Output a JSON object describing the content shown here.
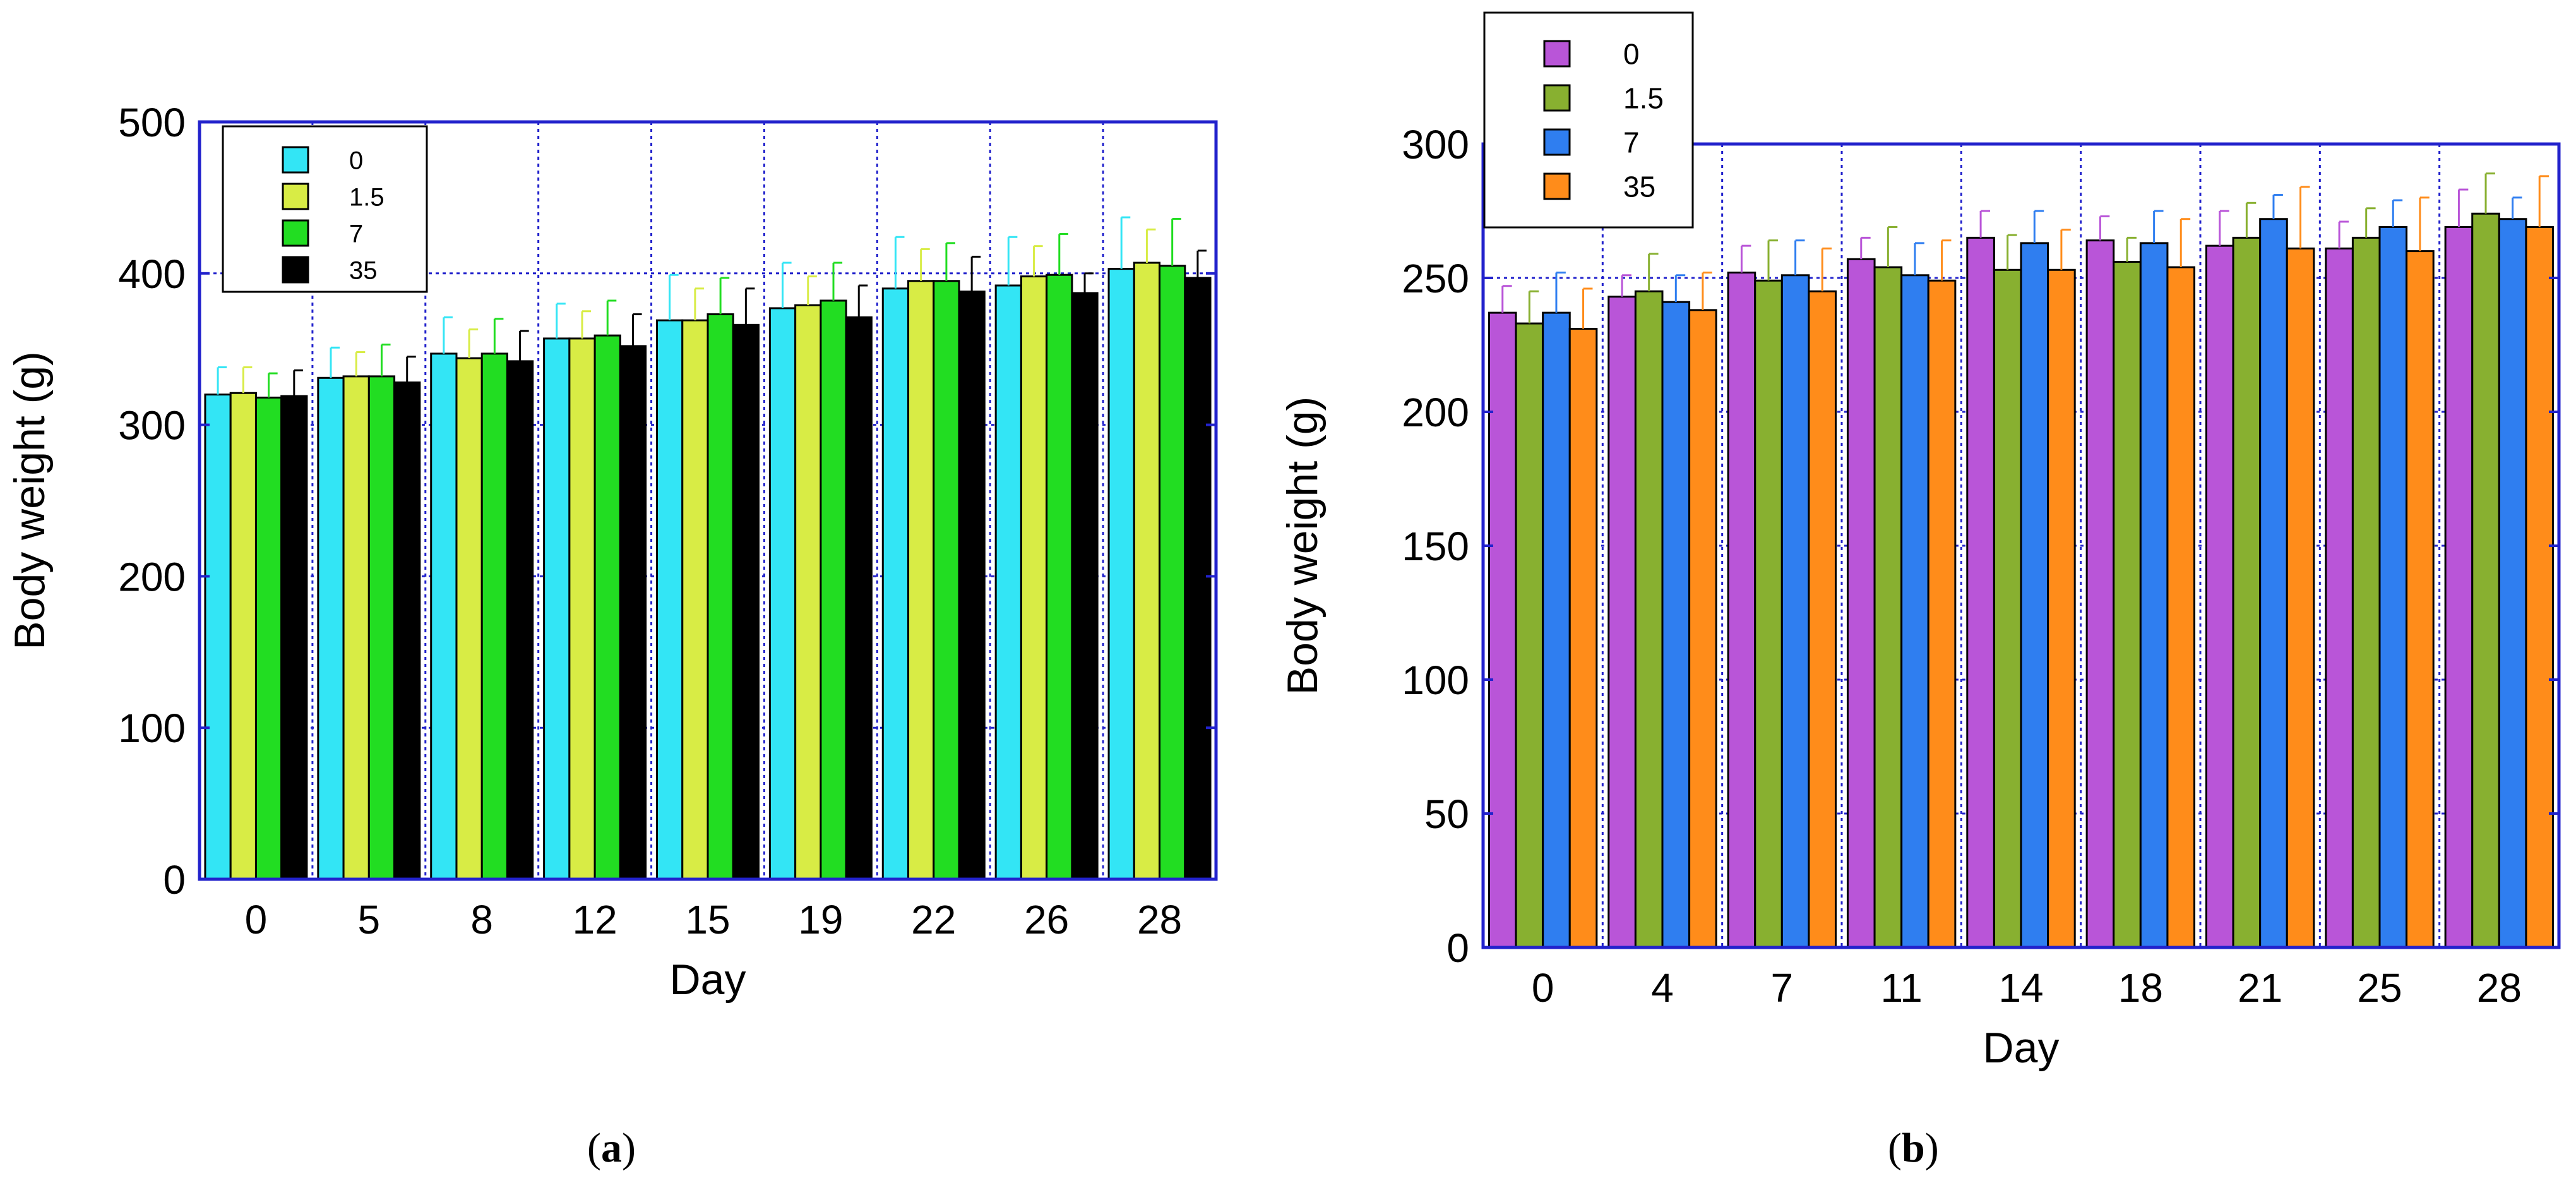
{
  "chart_data": [
    {
      "type": "bar",
      "panel": "a",
      "caption_letter": "a",
      "xlabel": "Day",
      "ylabel": "Body weight (g)",
      "ylim": [
        0,
        500
      ],
      "yticks": [
        0,
        100,
        200,
        300,
        400,
        500
      ],
      "grid": true,
      "legend_position": "top-left",
      "categories": [
        "0",
        "5",
        "8",
        "12",
        "15",
        "19",
        "22",
        "26",
        "28"
      ],
      "series": [
        {
          "name": "0",
          "color": "#33e5f5",
          "values": [
            320,
            331,
            347,
            357,
            369,
            377,
            390,
            392,
            403
          ],
          "errors": [
            18,
            20,
            24,
            23,
            30,
            30,
            34,
            32,
            34
          ]
        },
        {
          "name": "1.5",
          "color": "#d8ec45",
          "values": [
            321,
            332,
            344,
            357,
            369,
            379,
            395,
            398,
            407
          ],
          "errors": [
            17,
            16,
            19,
            18,
            21,
            19,
            21,
            20,
            22
          ]
        },
        {
          "name": "7",
          "color": "#22dd22",
          "values": [
            318,
            332,
            347,
            359,
            373,
            382,
            395,
            399,
            405
          ],
          "errors": [
            16,
            21,
            23,
            23,
            24,
            25,
            25,
            27,
            31
          ]
        },
        {
          "name": "35",
          "color": "#000000",
          "values": [
            319,
            328,
            342,
            352,
            366,
            371,
            388,
            387,
            397
          ],
          "errors": [
            17,
            17,
            20,
            21,
            24,
            21,
            23,
            13,
            18
          ]
        }
      ]
    },
    {
      "type": "bar",
      "panel": "b",
      "caption_letter": "b",
      "xlabel": "Day",
      "ylabel": "Body weight (g)",
      "ylim": [
        0,
        300
      ],
      "yticks": [
        0,
        50,
        100,
        150,
        200,
        250,
        300
      ],
      "grid": true,
      "legend_position": "top-left",
      "categories": [
        "0",
        "4",
        "7",
        "11",
        "14",
        "18",
        "21",
        "25",
        "28"
      ],
      "series": [
        {
          "name": "0",
          "color": "#b955d8",
          "values": [
            237,
            243,
            252,
            257,
            265,
            264,
            262,
            261,
            269
          ],
          "errors": [
            10,
            8,
            10,
            8,
            10,
            9,
            13,
            10,
            14
          ]
        },
        {
          "name": "1.5",
          "color": "#88b030",
          "values": [
            233,
            245,
            249,
            254,
            253,
            256,
            265,
            265,
            274
          ],
          "errors": [
            12,
            14,
            15,
            15,
            13,
            9,
            13,
            11,
            15
          ]
        },
        {
          "name": "7",
          "color": "#2f7ef0",
          "values": [
            237,
            241,
            251,
            251,
            263,
            263,
            272,
            269,
            272
          ],
          "errors": [
            15,
            10,
            13,
            12,
            12,
            12,
            9,
            10,
            8
          ]
        },
        {
          "name": "35",
          "color": "#ff8c1a",
          "values": [
            231,
            238,
            245,
            249,
            253,
            254,
            261,
            260,
            269
          ],
          "errors": [
            15,
            14,
            16,
            15,
            15,
            18,
            23,
            20,
            19
          ]
        }
      ]
    }
  ]
}
